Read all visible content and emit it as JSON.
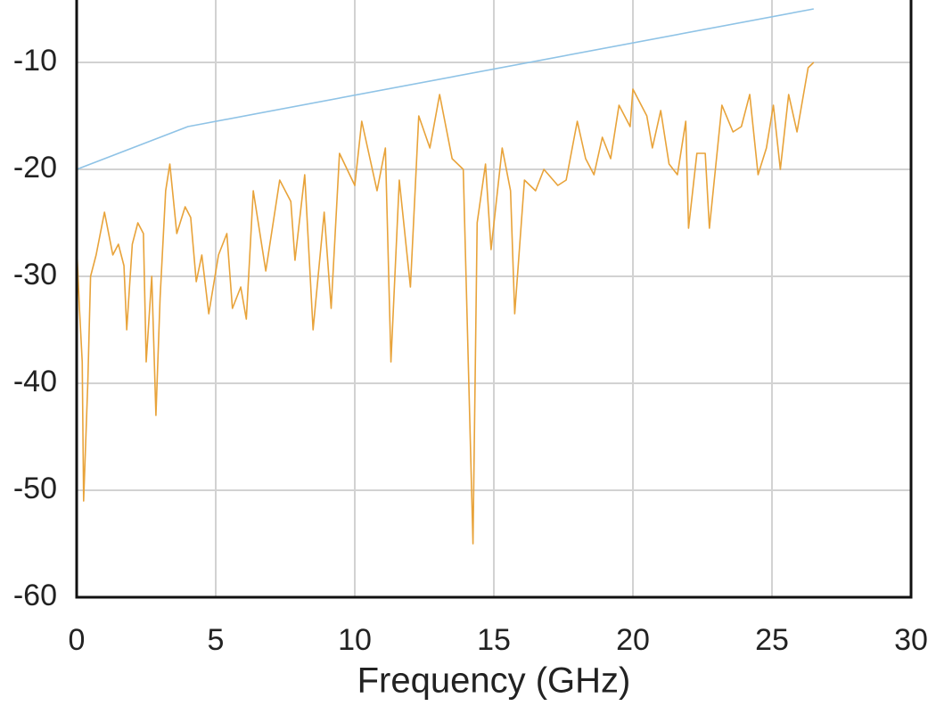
{
  "chart_data": {
    "type": "line",
    "xlabel": "Frequency (GHz)",
    "xlim": [
      0,
      30
    ],
    "xticks": [
      0,
      5,
      10,
      15,
      20,
      25,
      30
    ],
    "ylim": [
      -60,
      -4
    ],
    "yticks": [
      -60,
      -50,
      -40,
      -30,
      -20,
      -10
    ],
    "grid": true,
    "series": [
      {
        "color": "#8fc3e6",
        "x": [
          0,
          4,
          26.5
        ],
        "values": [
          -20,
          -16,
          -5
        ]
      },
      {
        "color": "#e8a33a",
        "x": [
          0,
          0.1,
          0.2,
          0.25,
          0.4,
          0.5,
          0.7,
          1.0,
          1.3,
          1.5,
          1.7,
          1.8,
          2.0,
          2.2,
          2.4,
          2.5,
          2.7,
          2.85,
          3.0,
          3.2,
          3.35,
          3.6,
          3.9,
          4.1,
          4.3,
          4.5,
          4.75,
          5.1,
          5.4,
          5.6,
          5.9,
          6.1,
          6.35,
          6.8,
          7.3,
          7.7,
          7.85,
          8.2,
          8.5,
          8.9,
          9.15,
          9.45,
          10.0,
          10.25,
          10.8,
          11.1,
          11.3,
          11.6,
          12.0,
          12.3,
          12.7,
          13.05,
          13.5,
          13.9,
          14.25,
          14.4,
          14.7,
          14.9,
          15.3,
          15.6,
          15.75,
          16.1,
          16.5,
          16.8,
          17.3,
          17.6,
          18.0,
          18.3,
          18.6,
          18.9,
          19.2,
          19.5,
          19.9,
          20.0,
          20.5,
          20.7,
          21.0,
          21.3,
          21.6,
          21.9,
          22.0,
          22.3,
          22.6,
          22.75,
          23.2,
          23.6,
          23.9,
          24.2,
          24.5,
          24.8,
          25.05,
          25.3,
          25.6,
          25.9,
          26.2,
          26.3,
          26.5
        ],
        "values": [
          -27,
          -33,
          -38,
          -51,
          -40,
          -30,
          -28,
          -24,
          -28,
          -27,
          -29,
          -35,
          -27,
          -25,
          -26,
          -38,
          -30,
          -43,
          -32,
          -22,
          -19.5,
          -26,
          -23.5,
          -24.5,
          -30.5,
          -28,
          -33.5,
          -28,
          -26,
          -33,
          -31,
          -34,
          -22,
          -29.5,
          -21,
          -23,
          -28.5,
          -20.5,
          -35,
          -24,
          -33,
          -18.5,
          -21.5,
          -15.5,
          -22,
          -18,
          -38,
          -21,
          -31,
          -15,
          -18,
          -13,
          -19,
          -20,
          -55,
          -25,
          -19.5,
          -27.5,
          -18,
          -22,
          -33.5,
          -21,
          -22,
          -20,
          -21.5,
          -21,
          -15.5,
          -19,
          -20.5,
          -17,
          -19,
          -14,
          -16,
          -12.5,
          -15,
          -18,
          -14.5,
          -19.5,
          -20.5,
          -15.5,
          -25.5,
          -18.5,
          -18.5,
          -25.5,
          -14,
          -16.5,
          -16,
          -13,
          -20.5,
          -18,
          -14,
          -20,
          -13,
          -16.5,
          -12,
          -10.5,
          -10
        ]
      }
    ]
  }
}
